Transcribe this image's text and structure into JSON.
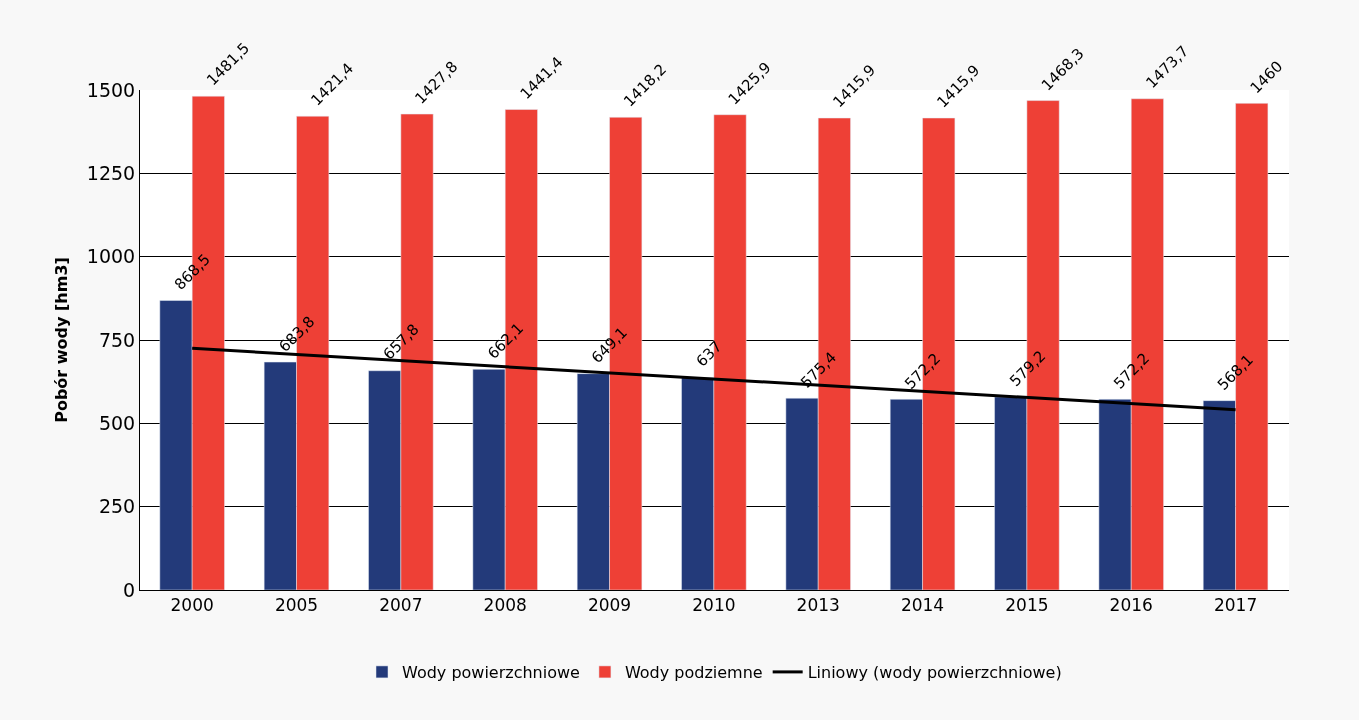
{
  "chart_data": {
    "type": "bar",
    "ylabel": "Pobór wody [hm3]",
    "categories": [
      "2000",
      "2005",
      "2007",
      "2008",
      "2009",
      "2010",
      "2013",
      "2014",
      "2015",
      "2016",
      "2017"
    ],
    "series": [
      {
        "name": "Wody powierzchniowe",
        "color": "#233a7a",
        "values": [
          868.5,
          683.8,
          657.8,
          662.1,
          649.1,
          637,
          575.4,
          572.2,
          579.2,
          572.2,
          568.1
        ],
        "value_labels": [
          "868,5",
          "683,8",
          "657,8",
          "662,1",
          "649,1",
          "637",
          "575,4",
          "572,2",
          "579,2",
          "572,2",
          "568,1"
        ]
      },
      {
        "name": "Wody podziemne",
        "color": "#ee4036",
        "values": [
          1481.5,
          1421.4,
          1427.8,
          1441.4,
          1418.2,
          1425.9,
          1415.9,
          1415.9,
          1468.3,
          1473.7,
          1460
        ],
        "value_labels": [
          "1481,5",
          "1421,4",
          "1427,8",
          "1441,4",
          "1418,2",
          "1425,9",
          "1415,9",
          "1415,9",
          "1468,3",
          "1473,7",
          "1460"
        ]
      },
      {
        "name": "Liniowy (wody powierzchniowe)",
        "type": "line",
        "color": "#000000",
        "values": [
          725,
          null,
          null,
          null,
          null,
          null,
          null,
          null,
          null,
          null,
          541
        ]
      }
    ],
    "ylim": [
      0,
      1500
    ],
    "yticks": [
      0,
      250,
      500,
      750,
      1000,
      1250,
      1500
    ],
    "grid": "y",
    "legend": "bottom"
  }
}
